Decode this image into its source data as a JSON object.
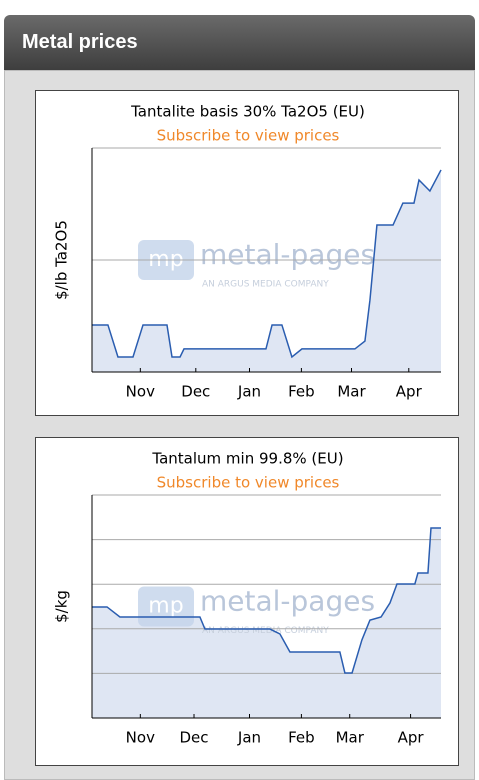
{
  "header": {
    "title": "Metal prices"
  },
  "chart_data": [
    {
      "type": "line",
      "title": "Tantalite basis 30% Ta2O5 (EU)",
      "subtitle": "Subscribe to view prices",
      "y_label": "$/lb Ta2O5",
      "watermark": {
        "logo": "mp",
        "name": "metal-pages",
        "tagline": "AN ARGUS MEDIA COMPANY"
      },
      "x": [
        0,
        8.9,
        14.5,
        22.9,
        28.5,
        41.9,
        44.7,
        49.2,
        51.4,
        97.2,
        100.6,
        106.1,
        111.7,
        117.3,
        146.9,
        152.5,
        155.3,
        159.2,
        168.2,
        173.7,
        179.9,
        182.7,
        188.8,
        195
      ],
      "values": [
        21,
        21,
        6.7,
        6.7,
        21,
        21,
        6.7,
        6.7,
        10.3,
        10.3,
        21,
        21,
        6.7,
        10.3,
        10.3,
        13.8,
        32.1,
        65.6,
        65.6,
        75.4,
        75.4,
        85.7,
        80.8,
        90.2
      ],
      "color": "#2a5db0",
      "fill": "#dfe6f3",
      "xlim": [
        0,
        195
      ],
      "xticks": [
        {
          "value": 27,
          "label": "Nov"
        },
        {
          "value": 58,
          "label": "Dec"
        },
        {
          "value": 88,
          "label": "Jan"
        },
        {
          "value": 117,
          "label": "Feb"
        },
        {
          "value": 145,
          "label": "Mar"
        },
        {
          "value": 177,
          "label": "Apr"
        }
      ],
      "ylim": [
        0,
        100
      ],
      "yticks": [
        50,
        100
      ],
      "ytick_labels": false,
      "grid": true
    },
    {
      "type": "line",
      "title": "Tantalum min 99.8% (EU)",
      "subtitle": "Subscribe to view prices",
      "y_label": "$/kg",
      "watermark": {
        "logo": "mp",
        "name": "metal-pages",
        "tagline": "AN ARGUS MEDIA COMPANY"
      },
      "x": [
        0,
        8.4,
        15.6,
        60.3,
        63.1,
        82.7,
        99.4,
        105,
        110.6,
        138.5,
        141.3,
        145.3,
        150.8,
        155.3,
        161.5,
        166.5,
        170.4,
        180.4,
        182.1,
        187.7,
        189.4,
        195
      ],
      "values": [
        49.8,
        49.8,
        45.3,
        45.3,
        39.9,
        39.9,
        39.9,
        37.7,
        29.6,
        29.6,
        20.2,
        20.2,
        35,
        43.9,
        45.3,
        51.6,
        60.1,
        60.1,
        65,
        65,
        85.2,
        85.2
      ],
      "color": "#2a5db0",
      "fill": "#dfe6f3",
      "xlim": [
        0,
        195
      ],
      "xticks": [
        {
          "value": 27,
          "label": "Nov"
        },
        {
          "value": 57,
          "label": "Dec"
        },
        {
          "value": 88,
          "label": "Jan"
        },
        {
          "value": 117,
          "label": "Feb"
        },
        {
          "value": 144,
          "label": "Mar"
        },
        {
          "value": 178,
          "label": "Apr"
        }
      ],
      "ylim": [
        0,
        100
      ],
      "yticks": [
        20,
        40,
        60,
        80,
        100
      ],
      "ytick_labels": false,
      "grid": true
    }
  ]
}
